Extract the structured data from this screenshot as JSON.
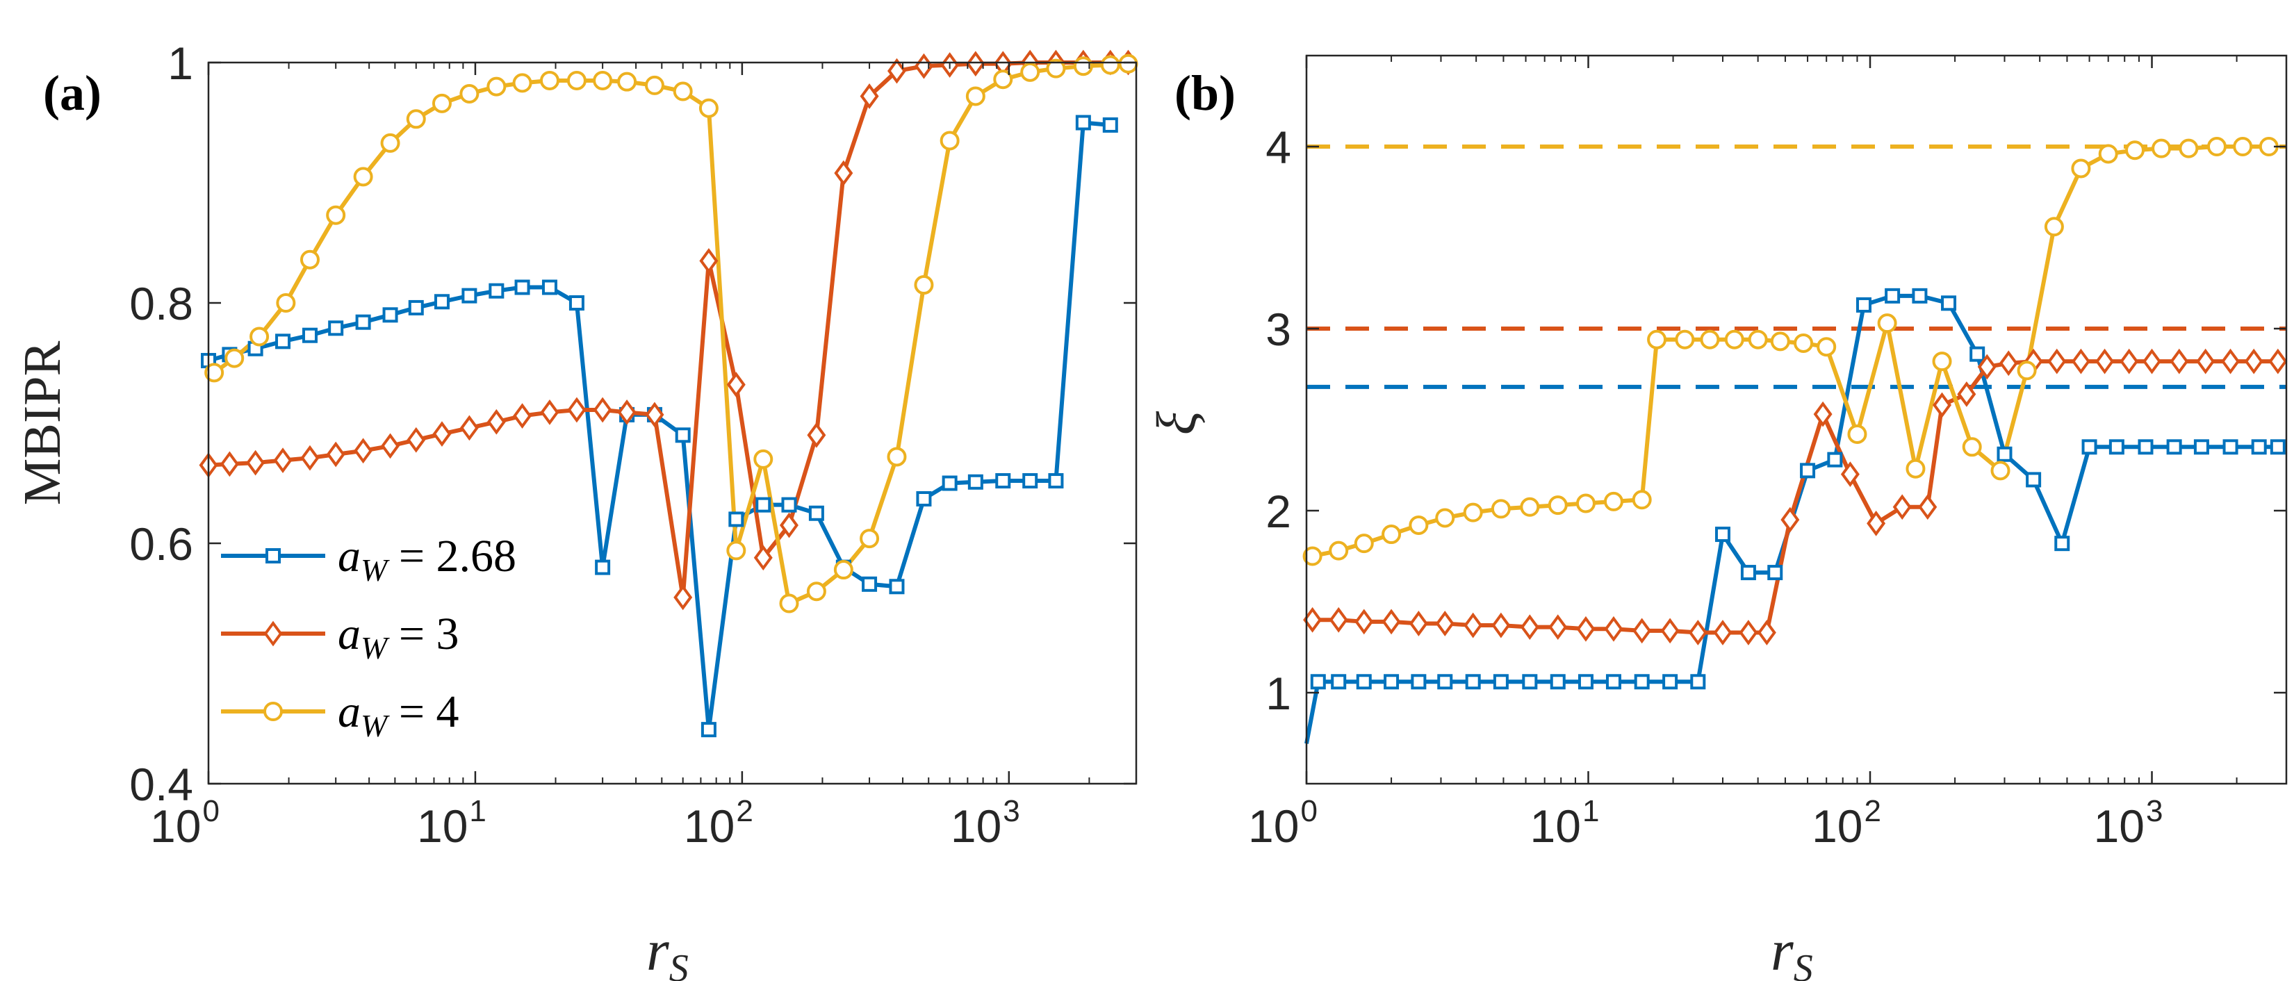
{
  "chart_data": [
    {
      "panel": "(a)",
      "type": "line",
      "xscale": "log",
      "xlim": [
        1,
        3000
      ],
      "ylim": [
        0.4,
        1.0
      ],
      "xlabel_main": "r",
      "xlabel_sub": "S",
      "ylabel": "MBIPR",
      "xticks": [
        {
          "value": 1,
          "base": "10",
          "exp": "0"
        },
        {
          "value": 10,
          "base": "10",
          "exp": "1"
        },
        {
          "value": 100,
          "base": "10",
          "exp": "2"
        },
        {
          "value": 1000,
          "base": "10",
          "exp": "3"
        }
      ],
      "yticks": [
        {
          "value": 0.4,
          "label": "0.4"
        },
        {
          "value": 0.6,
          "label": "0.6"
        },
        {
          "value": 0.8,
          "label": "0.8"
        },
        {
          "value": 1.0,
          "label": "1"
        }
      ],
      "legend": {
        "placement": "bottom-left"
      },
      "series": [
        {
          "name": "aW = 2.68",
          "legend_main": "a",
          "legend_sub": "W",
          "legend_rest": " = 2.68",
          "color": "#0072BD",
          "marker": "square",
          "x": [
            1,
            1.2,
            1.5,
            1.9,
            2.4,
            3.0,
            3.8,
            4.8,
            6.0,
            7.5,
            9.5,
            12,
            15,
            19,
            24,
            30,
            37,
            47,
            60,
            75,
            95,
            120,
            150,
            190,
            240,
            300,
            380,
            480,
            600,
            750,
            950,
            1200,
            1500,
            1900,
            2400
          ],
          "values": [
            0.752,
            0.757,
            0.762,
            0.768,
            0.773,
            0.779,
            0.784,
            0.79,
            0.796,
            0.801,
            0.806,
            0.81,
            0.813,
            0.813,
            0.8,
            0.58,
            0.707,
            0.707,
            0.69,
            0.445,
            0.62,
            0.632,
            0.632,
            0.625,
            0.58,
            0.566,
            0.564,
            0.637,
            0.65,
            0.651,
            0.652,
            0.652,
            0.652,
            0.95,
            0.948
          ]
        },
        {
          "name": "aW = 3",
          "legend_main": "a",
          "legend_sub": "W",
          "legend_rest": " = 3",
          "color": "#D95319",
          "marker": "diamond",
          "x": [
            1,
            1.2,
            1.5,
            1.9,
            2.4,
            3.0,
            3.8,
            4.8,
            6.0,
            7.5,
            9.5,
            12,
            15,
            19,
            24,
            30,
            37,
            47,
            60,
            75,
            95,
            120,
            150,
            190,
            240,
            300,
            380,
            480,
            600,
            750,
            950,
            1200,
            1500,
            1900,
            2400,
            2800
          ],
          "values": [
            0.665,
            0.666,
            0.667,
            0.669,
            0.671,
            0.674,
            0.677,
            0.681,
            0.686,
            0.691,
            0.696,
            0.701,
            0.706,
            0.709,
            0.711,
            0.711,
            0.709,
            0.707,
            0.555,
            0.835,
            0.732,
            0.588,
            0.615,
            0.69,
            0.908,
            0.972,
            0.993,
            0.997,
            0.998,
            0.999,
            0.999,
            1.0,
            1.0,
            1.0,
            1.0,
            1.0
          ]
        },
        {
          "name": "aW = 4",
          "legend_main": "a",
          "legend_sub": "W",
          "legend_rest": " = 4",
          "color": "#EDB120",
          "marker": "circle",
          "x": [
            1.05,
            1.25,
            1.55,
            1.95,
            2.4,
            3.0,
            3.8,
            4.8,
            6.0,
            7.5,
            9.5,
            12,
            15,
            19,
            24,
            30,
            37,
            47,
            60,
            75,
            95,
            120,
            150,
            190,
            240,
            300,
            380,
            480,
            600,
            750,
            950,
            1200,
            1500,
            1900,
            2400,
            2800
          ],
          "values": [
            0.742,
            0.754,
            0.772,
            0.8,
            0.836,
            0.873,
            0.905,
            0.933,
            0.953,
            0.966,
            0.974,
            0.98,
            0.983,
            0.985,
            0.985,
            0.985,
            0.984,
            0.981,
            0.976,
            0.962,
            0.594,
            0.67,
            0.55,
            0.56,
            0.578,
            0.604,
            0.672,
            0.815,
            0.935,
            0.972,
            0.986,
            0.992,
            0.995,
            0.997,
            0.998,
            0.999
          ]
        }
      ]
    },
    {
      "panel": "(b)",
      "type": "line",
      "xscale": "log",
      "xlim": [
        1,
        3000
      ],
      "ylim": [
        0.5,
        4.5
      ],
      "xlabel_main": "r",
      "xlabel_sub": "S",
      "ylabel": "ξ",
      "xticks": [
        {
          "value": 1,
          "base": "10",
          "exp": "0"
        },
        {
          "value": 10,
          "base": "10",
          "exp": "1"
        },
        {
          "value": 100,
          "base": "10",
          "exp": "2"
        },
        {
          "value": 1000,
          "base": "10",
          "exp": "3"
        }
      ],
      "yticks": [
        {
          "value": 1,
          "label": "1"
        },
        {
          "value": 2,
          "label": "2"
        },
        {
          "value": 3,
          "label": "3"
        },
        {
          "value": 4,
          "label": "4"
        }
      ],
      "reference_lines": [
        {
          "value": 4,
          "color": "#EDB120",
          "style": "dashed"
        },
        {
          "value": 3,
          "color": "#D95319",
          "style": "dashed"
        },
        {
          "value": 2.68,
          "color": "#0072BD",
          "style": "dashed"
        }
      ],
      "series": [
        {
          "name": "aW = 2.68",
          "color": "#0072BD",
          "marker": "square",
          "line_start": {
            "x": 1,
            "y": 0.72
          },
          "x": [
            1.1,
            1.3,
            1.6,
            2.0,
            2.5,
            3.1,
            3.9,
            4.9,
            6.2,
            7.8,
            9.8,
            12.3,
            15.5,
            19.5,
            24.5,
            30,
            37,
            46,
            60,
            75,
            95,
            120,
            150,
            190,
            240,
            300,
            380,
            480,
            600,
            750,
            950,
            1200,
            1500,
            1900,
            2400,
            2800
          ],
          "values": [
            1.06,
            1.06,
            1.06,
            1.06,
            1.06,
            1.06,
            1.06,
            1.06,
            1.06,
            1.06,
            1.06,
            1.06,
            1.06,
            1.06,
            1.06,
            1.87,
            1.66,
            1.66,
            2.22,
            2.28,
            3.13,
            3.18,
            3.18,
            3.14,
            2.86,
            2.31,
            2.17,
            1.82,
            2.35,
            2.35,
            2.35,
            2.35,
            2.35,
            2.35,
            2.35,
            2.35
          ]
        },
        {
          "name": "aW = 3",
          "color": "#D95319",
          "marker": "diamond",
          "x": [
            1.05,
            1.3,
            1.6,
            2.0,
            2.5,
            3.1,
            3.9,
            4.9,
            6.2,
            7.8,
            9.8,
            12.3,
            15.5,
            19.5,
            24.5,
            30,
            37,
            43,
            52,
            68,
            85,
            105,
            130,
            160,
            180,
            220,
            260,
            310,
            380,
            460,
            560,
            680,
            830,
            1000,
            1250,
            1550,
            1900,
            2300,
            2800
          ],
          "values": [
            1.4,
            1.4,
            1.39,
            1.39,
            1.38,
            1.38,
            1.37,
            1.37,
            1.36,
            1.36,
            1.35,
            1.35,
            1.34,
            1.34,
            1.33,
            1.33,
            1.33,
            1.33,
            1.95,
            2.53,
            2.2,
            1.93,
            2.02,
            2.02,
            2.58,
            2.64,
            2.79,
            2.81,
            2.82,
            2.82,
            2.82,
            2.82,
            2.82,
            2.82,
            2.82,
            2.82,
            2.82,
            2.82,
            2.82
          ]
        },
        {
          "name": "aW = 4",
          "color": "#EDB120",
          "marker": "circle",
          "x": [
            1.05,
            1.3,
            1.6,
            2.0,
            2.5,
            3.1,
            3.9,
            4.9,
            6.2,
            7.8,
            9.8,
            12.3,
            15.5,
            17.5,
            22,
            27,
            33,
            40,
            48,
            58,
            70,
            90,
            115,
            145,
            180,
            230,
            290,
            360,
            450,
            560,
            700,
            870,
            1080,
            1350,
            1700,
            2100,
            2600
          ],
          "values": [
            1.75,
            1.78,
            1.82,
            1.87,
            1.92,
            1.96,
            1.99,
            2.01,
            2.02,
            2.03,
            2.04,
            2.05,
            2.06,
            2.94,
            2.94,
            2.94,
            2.94,
            2.94,
            2.93,
            2.92,
            2.9,
            2.42,
            3.03,
            2.23,
            2.82,
            2.35,
            2.22,
            2.77,
            3.56,
            3.88,
            3.96,
            3.98,
            3.99,
            3.99,
            4.0,
            4.0,
            4.0
          ]
        }
      ]
    }
  ]
}
